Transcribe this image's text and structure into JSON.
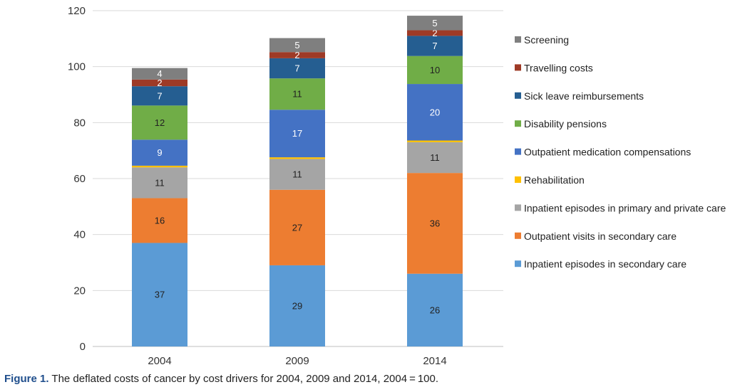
{
  "caption": {
    "label": "Figure 1.",
    "text": "The deflated costs of cancer by cost drivers for 2004, 2009 and 2014, 2004 = 100."
  },
  "chart_data": {
    "type": "bar",
    "stacked": true,
    "title": "",
    "xlabel": "",
    "ylabel": "",
    "categories": [
      "2004",
      "2009",
      "2014"
    ],
    "ylim": [
      0,
      120
    ],
    "yticks": [
      0,
      20,
      40,
      60,
      80,
      100,
      120
    ],
    "grid": true,
    "legend_position": "right",
    "series": [
      {
        "name": "Inpatient episodes in secondary care",
        "color": "#5b9bd5",
        "values": [
          37,
          29,
          26
        ],
        "labels": [
          "37",
          "29",
          "26"
        ]
      },
      {
        "name": "Outpatient visits in secondary care",
        "color": "#ed7d31",
        "values": [
          16,
          27,
          36
        ],
        "labels": [
          "16",
          "27",
          "36"
        ]
      },
      {
        "name": "Inpatient episodes in primary and private care",
        "color": "#a5a5a5",
        "values": [
          11,
          11,
          11
        ],
        "labels": [
          "11",
          "11",
          "11"
        ]
      },
      {
        "name": "Rehabilitation",
        "color": "#ffc000",
        "values": [
          0.6,
          0.6,
          0.6
        ],
        "labels": [
          "",
          "",
          ""
        ]
      },
      {
        "name": "Outpatient medication compensations",
        "color": "#4472c4",
        "values": [
          9.3,
          17,
          20.2
        ],
        "labels": [
          "9",
          "17",
          "20"
        ]
      },
      {
        "name": "Disability pensions",
        "color": "#70ad47",
        "values": [
          12.2,
          11.2,
          10
        ],
        "labels": [
          "12",
          "11",
          "10"
        ]
      },
      {
        "name": "Sick leave reimbursements",
        "color": "#255e91",
        "values": [
          6.9,
          7.2,
          7.2
        ],
        "labels": [
          "7",
          "7",
          "7"
        ]
      },
      {
        "name": "Travelling costs",
        "color": "#9e3a26",
        "values": [
          2.4,
          2.2,
          2.0
        ],
        "labels": [
          "2",
          "2",
          "2"
        ]
      },
      {
        "name": "Screening",
        "color": "#7f7f7f",
        "values": [
          4.1,
          5.0,
          5.2
        ],
        "labels": [
          "4",
          "5",
          "5"
        ]
      }
    ]
  }
}
